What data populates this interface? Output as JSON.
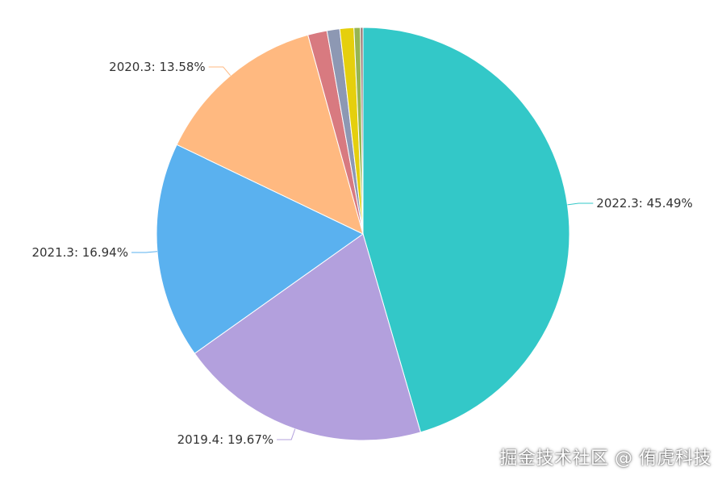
{
  "chart_data": {
    "type": "pie",
    "slices": [
      {
        "label": "2022.3",
        "value": 45.49,
        "color": "#33c8c8",
        "display": "2022.3: 45.49%"
      },
      {
        "label": "2019.4",
        "value": 19.67,
        "color": "#b3a0dd",
        "display": "2019.4: 19.67%"
      },
      {
        "label": "2021.3",
        "value": 16.94,
        "color": "#5ab1ef",
        "display": "2021.3: 16.94%"
      },
      {
        "label": "2020.3",
        "value": 13.58,
        "color": "#ffb980",
        "display": "2020.3: 13.58%"
      },
      {
        "label": "",
        "value": 1.5,
        "color": "#d87a80",
        "display": ""
      },
      {
        "label": "",
        "value": 1.0,
        "color": "#8d98b3",
        "display": ""
      },
      {
        "label": "",
        "value": 1.1,
        "color": "#e5cf0d",
        "display": ""
      },
      {
        "label": "",
        "value": 0.5,
        "color": "#97b552",
        "display": ""
      },
      {
        "label": "",
        "value": 0.2,
        "color": "#95706d",
        "display": ""
      }
    ]
  },
  "watermark": "掘金技术社区 @ 侑虎科技"
}
